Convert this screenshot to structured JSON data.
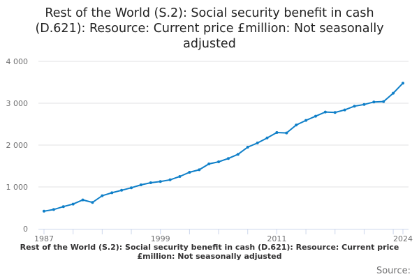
{
  "chart_data": {
    "type": "line",
    "title": "Rest of the World (S.2): Social security benefit in cash (D.621): Resource: Current price £million: Not seasonally adjusted",
    "xlabel": "",
    "ylabel": "",
    "x": [
      1987,
      1988,
      1989,
      1990,
      1991,
      1992,
      1993,
      1994,
      1995,
      1996,
      1997,
      1998,
      1999,
      2000,
      2001,
      2002,
      2003,
      2004,
      2005,
      2006,
      2007,
      2008,
      2009,
      2010,
      2011,
      2012,
      2013,
      2014,
      2015,
      2016,
      2017,
      2018,
      2019,
      2020,
      2021,
      2022,
      2023,
      2024
    ],
    "values": [
      420,
      460,
      530,
      590,
      690,
      630,
      790,
      860,
      920,
      980,
      1050,
      1100,
      1130,
      1170,
      1250,
      1350,
      1410,
      1550,
      1600,
      1680,
      1780,
      1950,
      2050,
      2170,
      2300,
      2290,
      2480,
      2590,
      2690,
      2790,
      2780,
      2840,
      2930,
      2970,
      3030,
      3040,
      3240,
      3480
    ],
    "ylim": [
      0,
      4000
    ],
    "yticks": [
      {
        "v": 0,
        "label": "0"
      },
      {
        "v": 1000,
        "label": "1 000"
      },
      {
        "v": 2000,
        "label": "2 000"
      },
      {
        "v": 3000,
        "label": "3 000"
      },
      {
        "v": 4000,
        "label": "4 000"
      }
    ],
    "xtick_labels": [
      {
        "v": 1987,
        "label": "1987"
      },
      {
        "v": 1999,
        "label": "1999"
      },
      {
        "v": 2011,
        "label": "2011"
      },
      {
        "v": 2024,
        "label": "2024"
      }
    ],
    "grid": true,
    "color": "#0f7fc8"
  },
  "footer": {
    "legend_text": "Rest of the World (S.2): Social security benefit in cash (D.621): Resource: Current price £million: Not seasonally adjusted",
    "source": "Source:"
  }
}
